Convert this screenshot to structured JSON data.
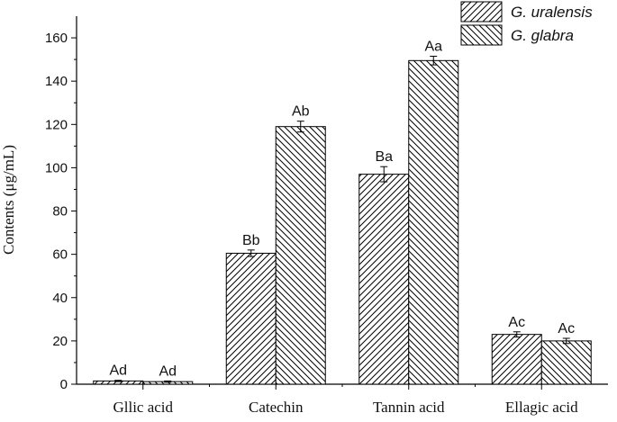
{
  "chart_data": {
    "type": "bar",
    "categories": [
      "Gllic acid",
      "Catechin",
      "Tannin acid",
      "Ellagic acid"
    ],
    "series": [
      {
        "name": "G. uralensis",
        "pattern": "forward-hatch",
        "values": [
          1.5,
          60.5,
          97.0,
          23.0
        ],
        "errors": [
          0.3,
          1.5,
          3.5,
          1.2
        ],
        "labels": [
          "Ad",
          "Bb",
          "Ba",
          "Ac"
        ]
      },
      {
        "name": "G. glabra",
        "pattern": "back-hatch",
        "values": [
          1.2,
          119.0,
          149.5,
          20.0
        ],
        "errors": [
          0.3,
          2.5,
          2.0,
          1.2
        ],
        "labels": [
          "Ad",
          "Ab",
          "Aa",
          "Ac"
        ]
      }
    ],
    "ylabel": "Contents (μg/mL)",
    "xlabel": "",
    "ylim": [
      0,
      170
    ],
    "yticks": [
      0,
      20,
      40,
      60,
      80,
      100,
      120,
      140,
      160
    ],
    "legend_position": "top-right",
    "grid": false
  }
}
